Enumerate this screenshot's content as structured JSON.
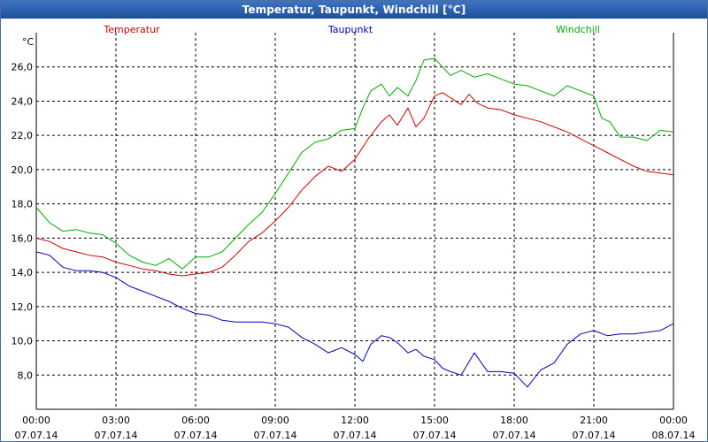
{
  "window": {
    "title": "Temperatur, Taupunkt, Windchill [°C]"
  },
  "chart_data": {
    "type": "line",
    "unit_label": "°C",
    "grid": true,
    "legend": [
      "Temperatur",
      "Taupunkt",
      "Windchill"
    ],
    "ylim": [
      6,
      28
    ],
    "yticks": [
      "8,0",
      "10,0",
      "12,0",
      "14,0",
      "16,0",
      "18,0",
      "20,0",
      "22,0",
      "24,0",
      "26,0"
    ],
    "ytick_values": [
      8,
      10,
      12,
      14,
      16,
      18,
      20,
      22,
      24,
      26
    ],
    "xlim": [
      0,
      24
    ],
    "xticks": [
      {
        "time": "00:00",
        "date": "07.07.14",
        "hour": 0
      },
      {
        "time": "03:00",
        "date": "07.07.14",
        "hour": 3
      },
      {
        "time": "06:00",
        "date": "07.07.14",
        "hour": 6
      },
      {
        "time": "09:00",
        "date": "07.07.14",
        "hour": 9
      },
      {
        "time": "12:00",
        "date": "07.07.14",
        "hour": 12
      },
      {
        "time": "15:00",
        "date": "07.07.14",
        "hour": 15
      },
      {
        "time": "18:00",
        "date": "07.07.14",
        "hour": 18
      },
      {
        "time": "21:00",
        "date": "07.07.14",
        "hour": 21
      },
      {
        "time": "00:00",
        "date": "08.07.14",
        "hour": 24
      }
    ],
    "series": [
      {
        "name": "Temperatur",
        "color": "#cc0000",
        "x": [
          0,
          0.5,
          1,
          1.5,
          2,
          2.5,
          3,
          3.5,
          4,
          4.5,
          5,
          5.5,
          6,
          6.5,
          7,
          7.5,
          8,
          8.5,
          9,
          9.5,
          10,
          10.5,
          11,
          11.5,
          12,
          12.5,
          13,
          13.3,
          13.6,
          14,
          14.3,
          14.6,
          15,
          15.3,
          15.6,
          16,
          16.3,
          16.6,
          17,
          17.5,
          18,
          18.5,
          19,
          19.5,
          20,
          20.5,
          21,
          21.5,
          22,
          22.5,
          23,
          23.5,
          24
        ],
        "values": [
          16.0,
          15.8,
          15.4,
          15.2,
          15.0,
          14.9,
          14.6,
          14.4,
          14.2,
          14.1,
          13.9,
          13.8,
          13.9,
          14.0,
          14.3,
          15.0,
          15.8,
          16.3,
          17.0,
          17.8,
          18.8,
          19.6,
          20.2,
          19.9,
          20.6,
          21.8,
          22.8,
          23.2,
          22.6,
          23.6,
          22.5,
          23.0,
          24.3,
          24.5,
          24.2,
          23.8,
          24.4,
          23.9,
          23.6,
          23.5,
          23.2,
          23.0,
          22.8,
          22.5,
          22.2,
          21.8,
          21.4,
          21.0,
          20.6,
          20.2,
          19.9,
          19.8,
          19.7
        ]
      },
      {
        "name": "Taupunkt",
        "color": "#0000bb",
        "x": [
          0,
          0.5,
          1,
          1.5,
          2,
          2.5,
          3,
          3.5,
          4,
          4.5,
          5,
          5.5,
          6,
          6.5,
          7,
          7.5,
          8,
          8.5,
          9,
          9.5,
          10,
          10.5,
          11,
          11.5,
          12,
          12.3,
          12.6,
          13,
          13.3,
          13.6,
          14,
          14.3,
          14.6,
          15,
          15.3,
          15.6,
          16,
          16.5,
          17,
          17.5,
          18,
          18.5,
          19,
          19.5,
          20,
          20.5,
          21,
          21.5,
          22,
          22.5,
          23,
          23.5,
          24
        ],
        "values": [
          15.2,
          15.0,
          14.3,
          14.1,
          14.1,
          14.0,
          13.7,
          13.2,
          12.9,
          12.6,
          12.3,
          11.9,
          11.6,
          11.5,
          11.2,
          11.1,
          11.1,
          11.1,
          11.0,
          10.8,
          10.2,
          9.8,
          9.3,
          9.6,
          9.2,
          8.8,
          9.8,
          10.3,
          10.2,
          9.9,
          9.3,
          9.5,
          9.1,
          8.9,
          8.4,
          8.2,
          8.0,
          9.3,
          8.2,
          8.2,
          8.1,
          7.3,
          8.3,
          8.7,
          9.8,
          10.4,
          10.6,
          10.3,
          10.4,
          10.4,
          10.5,
          10.6,
          11.0
        ]
      },
      {
        "name": "Windchill",
        "color": "#00aa00",
        "x": [
          0,
          0.5,
          1,
          1.5,
          2,
          2.5,
          3,
          3.5,
          4,
          4.5,
          5,
          5.5,
          6,
          6.5,
          7,
          7.5,
          8,
          8.5,
          9,
          9.5,
          10,
          10.5,
          11,
          11.5,
          12,
          12.3,
          12.6,
          13,
          13.3,
          13.6,
          14,
          14.3,
          14.6,
          15,
          15.3,
          15.6,
          16,
          16.5,
          17,
          17.5,
          18,
          18.5,
          19,
          19.5,
          20,
          20.5,
          21,
          21.3,
          21.6,
          22,
          22.5,
          23,
          23.5,
          24
        ],
        "values": [
          17.8,
          16.9,
          16.4,
          16.5,
          16.3,
          16.2,
          15.7,
          15.0,
          14.6,
          14.4,
          14.8,
          14.2,
          14.9,
          14.9,
          15.2,
          16.0,
          16.8,
          17.5,
          18.6,
          19.8,
          21.0,
          21.6,
          21.8,
          22.3,
          22.4,
          23.6,
          24.6,
          25.0,
          24.3,
          24.8,
          24.3,
          25.2,
          26.4,
          26.5,
          26.0,
          25.5,
          25.8,
          25.4,
          25.6,
          25.3,
          25.0,
          24.9,
          24.6,
          24.3,
          24.9,
          24.6,
          24.3,
          23.0,
          22.8,
          21.9,
          21.9,
          21.7,
          22.3,
          22.2
        ]
      }
    ]
  }
}
